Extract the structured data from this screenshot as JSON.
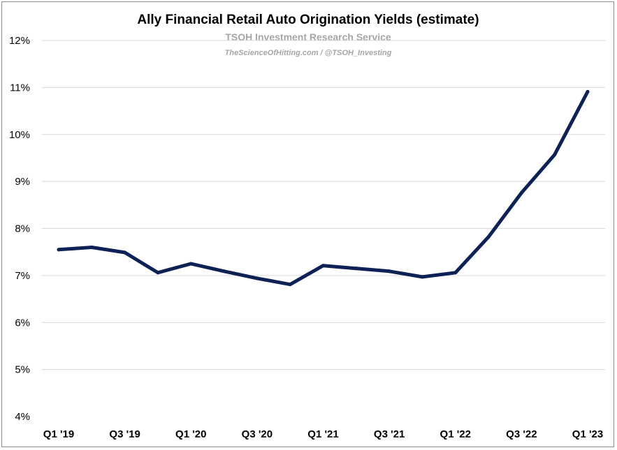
{
  "chart_data": {
    "type": "line",
    "title": "Ally Financial Retail Auto Origination Yields (estimate)",
    "subtitle": "TSOH Investment Research Service",
    "source_line": "TheScienceOfHitting.com / @TSOH_Investing",
    "x": [
      "Q1 '19",
      "Q2 '19",
      "Q3 '19",
      "Q4 '19",
      "Q1 '20",
      "Q2 '20",
      "Q3 '20",
      "Q4 '20",
      "Q1 '21",
      "Q2 '21",
      "Q3 '21",
      "Q4 '21",
      "Q1 '22",
      "Q2 '22",
      "Q3 '22",
      "Q4 '22",
      "Q1 '23"
    ],
    "x_tick_labels": [
      "Q1 '19",
      "",
      "Q3 '19",
      "",
      "Q1 '20",
      "",
      "Q3 '20",
      "",
      "Q1 '21",
      "",
      "Q3 '21",
      "",
      "Q1 '22",
      "",
      "Q3 '22",
      "",
      "Q1 '23"
    ],
    "series": [
      {
        "values": [
          7.55,
          7.6,
          7.49,
          7.06,
          7.25,
          7.09,
          6.94,
          6.81,
          7.21,
          7.15,
          7.09,
          6.97,
          7.06,
          7.82,
          8.76,
          9.57,
          10.91
        ],
        "color": "#0d2155"
      }
    ],
    "ylim": [
      4,
      12
    ],
    "y_ticks": [
      4,
      5,
      6,
      7,
      8,
      9,
      10,
      11,
      12
    ],
    "y_tick_format": "percent",
    "grid": true,
    "legend": "none"
  },
  "colors": {
    "gridline": "#d9d9d9",
    "line": "#0d2155",
    "subtitle": "#a6a6a6"
  }
}
